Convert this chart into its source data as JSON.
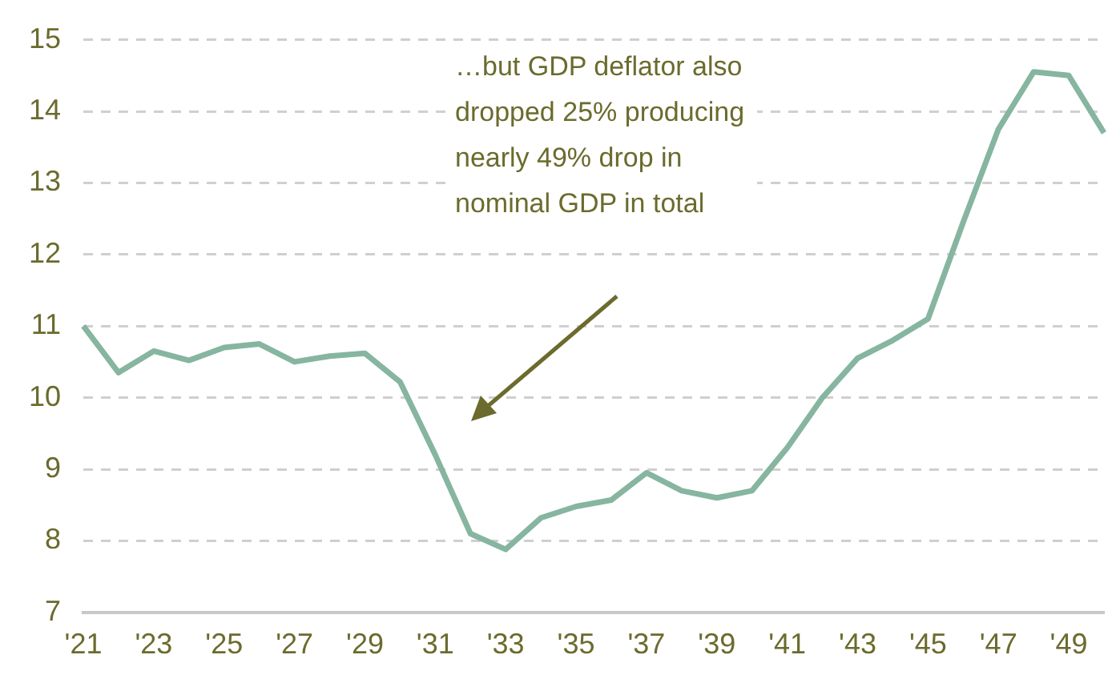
{
  "chart_data": {
    "type": "line",
    "categories": [
      "'21",
      null,
      "'23",
      null,
      "'25",
      null,
      "'27",
      null,
      "'29",
      null,
      "'31",
      null,
      "'33",
      null,
      "'35",
      null,
      "'37",
      null,
      "'39",
      null,
      "'41",
      null,
      "'43",
      null,
      "'45",
      null,
      "'47",
      null,
      "'49",
      null
    ],
    "series": [
      {
        "color": "#86b5a0",
        "values": [
          11.0,
          10.35,
          10.65,
          10.52,
          10.7,
          10.75,
          10.5,
          10.58,
          10.62,
          10.22,
          9.2,
          8.1,
          7.88,
          8.32,
          8.48,
          8.57,
          8.95,
          8.7,
          8.6,
          8.7,
          9.3,
          10.0,
          10.55,
          10.8,
          11.1,
          12.45,
          13.75,
          14.55,
          14.5,
          13.7
        ]
      }
    ],
    "ylim": [
      7,
      15
    ],
    "yticks": [
      7,
      8,
      9,
      10,
      11,
      12,
      13,
      14,
      15
    ],
    "grid": "y",
    "legend": false,
    "marker": "none",
    "line_style": "solid",
    "annotations": [
      "…but GDP deflator also\ndropped 25% producing\nnearly 49% drop in\nnominal GDP in total"
    ]
  }
}
